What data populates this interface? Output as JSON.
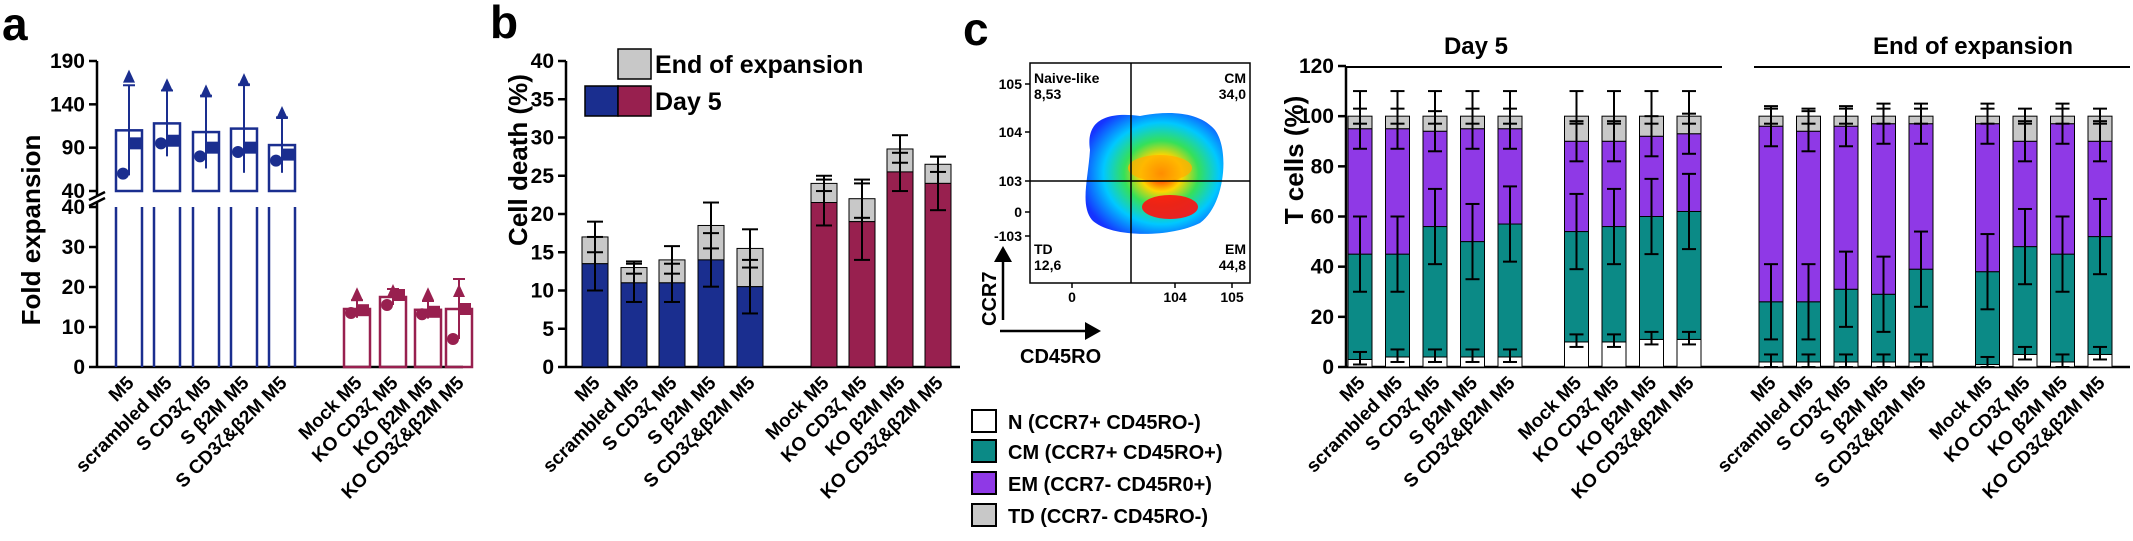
{
  "colors": {
    "navy": "#1a2e8f",
    "maroon": "#98204f",
    "gray": "#c8c8c8",
    "teal": "#0b8a86",
    "purple": "#8f39e6",
    "white": "#ffffff"
  },
  "panel_labels": {
    "a": "a",
    "b": "b",
    "c": "c"
  },
  "chart_data": [
    {
      "id": "a",
      "type": "bar",
      "ylabel": "Fold expansion",
      "broken_axis": true,
      "ylim_lower": [
        0,
        40
      ],
      "ylim_upper": [
        40,
        190
      ],
      "yticks_lower": [
        "0",
        "10",
        "20",
        "30",
        "40"
      ],
      "yticks_upper": [
        "40",
        "90",
        "140",
        "190"
      ],
      "groups": [
        {
          "color_key": "navy",
          "categories": [
            "M5",
            "scrambled M5",
            "S CD3ζ M5",
            "S β2M M5",
            "S CD3ζ&β2M M5"
          ],
          "means": [
            110,
            118,
            108,
            112,
            93
          ],
          "sd": [
            52,
            38,
            42,
            51,
            32
          ],
          "points": [
            [
              60,
              95,
              172
            ],
            [
              95,
              98,
              162
            ],
            [
              80,
              90,
              155
            ],
            [
              85,
              90,
              168
            ],
            [
              75,
              82,
              130
            ]
          ]
        },
        {
          "color_key": "maroon",
          "categories": [
            "Mock M5",
            "KO CD3ζ M5",
            "KO β2M M5",
            "KO CD3ζ&β2M M5"
          ],
          "means": [
            14.5,
            17.5,
            14.3,
            14.5
          ],
          "sd": [
            2.2,
            2.0,
            2.2,
            7.5
          ],
          "points": [
            [
              13.5,
              14.2,
              18.2
            ],
            [
              15.5,
              18.0,
              19.0
            ],
            [
              13.2,
              13.8,
              18.2
            ],
            [
              7.0,
              14.5,
              19.0
            ]
          ]
        }
      ]
    },
    {
      "id": "b",
      "type": "bar",
      "stacked": true,
      "ylabel": "Cell death (%)",
      "ylim": [
        0,
        40
      ],
      "yticks": [
        "0",
        "5",
        "10",
        "15",
        "20",
        "25",
        "30",
        "35",
        "40"
      ],
      "legend": [
        "End of expansion",
        "Day 5"
      ],
      "groups": [
        {
          "color_key": "navy",
          "categories": [
            "M5",
            "scrambled M5",
            "S CD3ζ M5",
            "S β2M M5",
            "S CD3ζ&β2M M5"
          ],
          "day5": [
            13.5,
            11.0,
            11.0,
            14.0,
            10.5
          ],
          "day5_sd": [
            3.5,
            2.5,
            2.5,
            3.5,
            3.5
          ],
          "end": [
            17.0,
            13.0,
            14.0,
            18.5,
            15.5
          ],
          "end_sd": [
            2.0,
            0.8,
            1.8,
            3.0,
            2.5
          ]
        },
        {
          "color_key": "maroon",
          "categories": [
            "Mock M5",
            "KO CD3ζ M5",
            "KO β2M M5",
            "KO CD3ζ&β2M M5"
          ],
          "day5": [
            21.5,
            19.0,
            25.5,
            24.0
          ],
          "day5_sd": [
            3.0,
            5.0,
            2.5,
            3.5
          ],
          "end": [
            24.0,
            22.0,
            28.5,
            26.5
          ],
          "end_sd": [
            1.0,
            2.5,
            1.8,
            1.0
          ]
        }
      ]
    },
    {
      "id": "c",
      "type": "bar",
      "stacked": true,
      "ylabel": "T cells (%)",
      "ylim": [
        0,
        120
      ],
      "yticks": [
        "0",
        "20",
        "40",
        "60",
        "80",
        "100",
        "120"
      ],
      "group_titles": [
        "Day 5",
        "End of expansion"
      ],
      "categories": [
        "M5",
        "scrambled M5",
        "S CD3ζ M5",
        "S β2M M5",
        "S CD3ζ&β2M M5",
        "Mock M5",
        "KO CD3ζ M5",
        "KO β2M M5",
        "KO CD3ζ&β2M M5"
      ],
      "legend": [
        {
          "label": "N (CCR7+ CD45RO-)",
          "color_key": "white"
        },
        {
          "label": "CM (CCR7+ CD45RO+)",
          "color_key": "teal"
        },
        {
          "label": "EM (CCR7- CD45R0+)",
          "color_key": "purple"
        },
        {
          "label": "TD (CCR7- CD45RO-)",
          "color_key": "gray"
        }
      ],
      "subsets": [
        {
          "title": "Day 5",
          "N": [
            3,
            4,
            4,
            4,
            4,
            10,
            10,
            11,
            11
          ],
          "CM": [
            42,
            41,
            52,
            46,
            53,
            44,
            46,
            49,
            51
          ],
          "EM": [
            50,
            50,
            38,
            45,
            38,
            36,
            34,
            32,
            31
          ],
          "TD": [
            5,
            5,
            6,
            5,
            5,
            10,
            10,
            8,
            7
          ]
        },
        {
          "title": "End of expansion",
          "N": [
            2,
            2,
            2,
            2,
            2,
            1,
            5,
            2,
            5
          ],
          "CM": [
            24,
            24,
            29,
            27,
            37,
            37,
            43,
            43,
            47
          ],
          "EM": [
            70,
            68,
            65,
            68,
            58,
            59,
            42,
            52,
            38
          ],
          "TD": [
            4,
            6,
            4,
            3,
            3,
            3,
            10,
            3,
            10
          ]
        }
      ]
    }
  ],
  "flow_plot": {
    "quadrants": [
      {
        "name": "Naive-like",
        "value": "8,53"
      },
      {
        "name": "CM",
        "value": "34,0"
      },
      {
        "name": "TD",
        "value": "12,6"
      },
      {
        "name": "EM",
        "value": "44,8"
      }
    ],
    "x_axis_label": "CD45RO",
    "y_axis_label": "CCR7",
    "y_ticks": [
      "10^5",
      "10^4",
      "10^3",
      "0",
      "-10^3"
    ],
    "x_ticks": [
      "0",
      "10^4",
      "10^5"
    ]
  }
}
